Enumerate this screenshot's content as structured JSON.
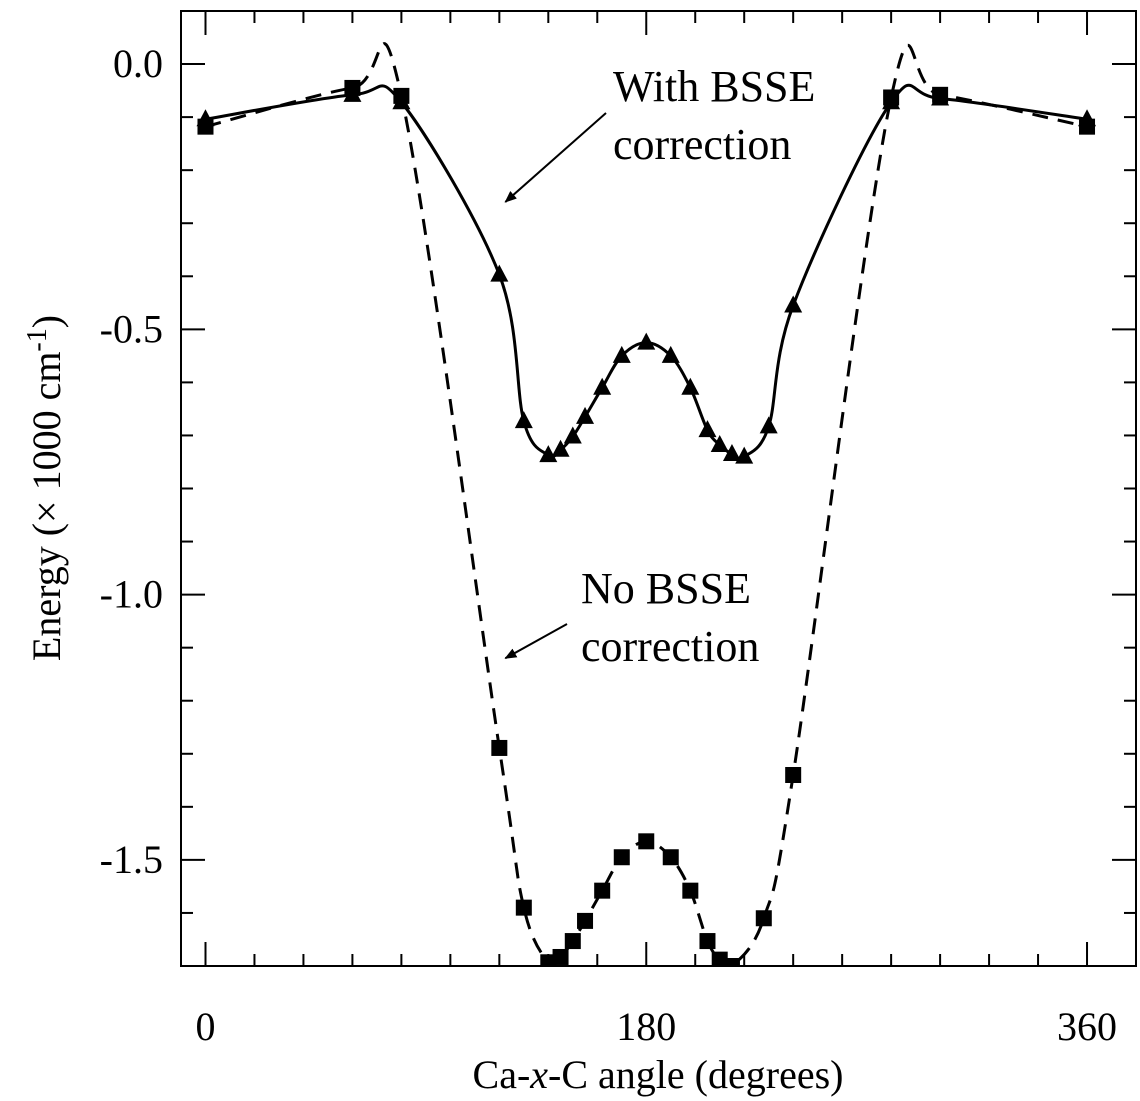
{
  "chart_data": {
    "type": "line",
    "title": "",
    "xlabel": {
      "pre": "Ca-",
      "ital": "x",
      "post": "-C angle (degrees)"
    },
    "ylabel": {
      "main": "Energy (× 1000 cm",
      "sup": "-1",
      "end": ")"
    },
    "xlim": [
      -10,
      380
    ],
    "ylim": [
      -1.7,
      0.1
    ],
    "x_ticks": [
      0,
      180,
      360
    ],
    "x_tick_labels": [
      "0",
      "180",
      "360"
    ],
    "x_minor_step": 20,
    "y_ticks": [
      0.0,
      -0.5,
      -1.0,
      -1.5
    ],
    "y_tick_labels": [
      "0.0",
      "-0.5",
      "-1.0",
      "-1.5"
    ],
    "y_minor_step": 0.1,
    "grid": false,
    "series": [
      {
        "name": "With BSSE correction",
        "marker": "triangle",
        "line": "solid",
        "points": [
          [
            0,
            -0.104
          ],
          [
            60,
            -0.058
          ],
          [
            80,
            -0.072
          ],
          [
            120,
            -0.397
          ],
          [
            130,
            -0.673
          ],
          [
            140,
            -0.737
          ],
          [
            145,
            -0.727
          ],
          [
            150,
            -0.702
          ],
          [
            155,
            -0.665
          ],
          [
            162,
            -0.61
          ],
          [
            170,
            -0.55
          ],
          [
            180,
            -0.525
          ],
          [
            190,
            -0.55
          ],
          [
            198,
            -0.61
          ],
          [
            205,
            -0.69
          ],
          [
            210,
            -0.718
          ],
          [
            215,
            -0.735
          ],
          [
            220,
            -0.74
          ],
          [
            230,
            -0.683
          ],
          [
            240,
            -0.455
          ],
          [
            280,
            -0.072
          ],
          [
            300,
            -0.065
          ],
          [
            360,
            -0.104
          ]
        ]
      },
      {
        "name": "No BSSE correction",
        "marker": "square",
        "line": "dashed",
        "points": [
          [
            0,
            -0.118
          ],
          [
            60,
            -0.045
          ],
          [
            80,
            -0.06
          ],
          [
            120,
            -1.289
          ],
          [
            130,
            -1.59
          ],
          [
            140,
            -1.693
          ],
          [
            145,
            -1.683
          ],
          [
            150,
            -1.653
          ],
          [
            155,
            -1.615
          ],
          [
            162,
            -1.558
          ],
          [
            170,
            -1.495
          ],
          [
            180,
            -1.465
          ],
          [
            190,
            -1.495
          ],
          [
            198,
            -1.558
          ],
          [
            205,
            -1.653
          ],
          [
            210,
            -1.688
          ],
          [
            215,
            -1.7
          ],
          [
            228,
            -1.61
          ],
          [
            240,
            -1.34
          ],
          [
            280,
            -0.063
          ],
          [
            300,
            -0.058
          ],
          [
            360,
            -0.118
          ]
        ]
      }
    ],
    "annotations": [
      {
        "lines": [
          "With BSSE",
          "correction"
        ],
        "points_to_series": 0,
        "at_x": 120
      },
      {
        "lines": [
          "No BSSE",
          "correction"
        ],
        "points_to_series": 1,
        "at_x": 120
      }
    ]
  }
}
